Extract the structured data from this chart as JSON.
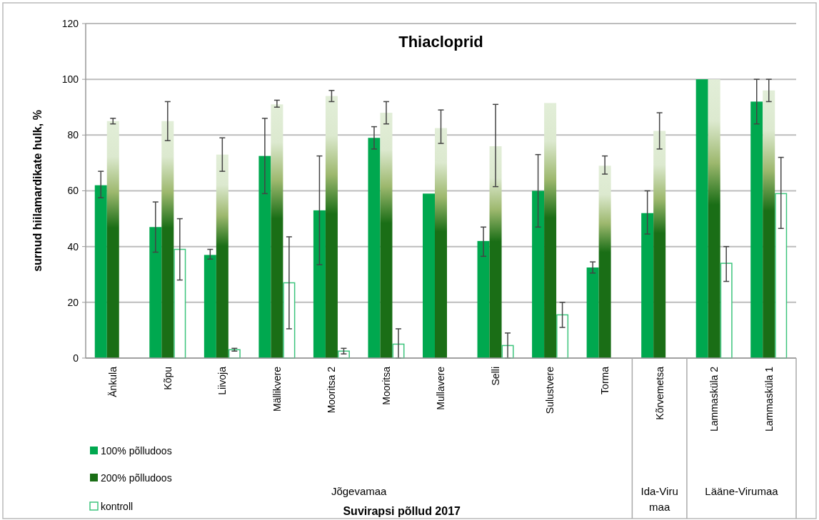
{
  "chart_data": {
    "type": "bar",
    "title": "Thiacloprid",
    "ylabel": "surnud hiilamardikate hulk, %",
    "categories": [
      "Änkula",
      "Kõpu",
      "Liivoja",
      "Mällikvere",
      "Mooritsa 2",
      "Mooritsa",
      "Mullavere",
      "Selli",
      "Sulustvere",
      "Torma",
      "Kõrvemetsa",
      "Lammasküla 2",
      "Lammasküla 1"
    ],
    "series": [
      {
        "name": "100% põlludoos",
        "color": "#00a84f",
        "values": [
          62,
          47,
          37,
          72.5,
          53,
          79,
          59,
          42,
          60,
          32.5,
          52,
          100,
          92
        ],
        "errors": [
          [
            57.5,
            67
          ],
          [
            38,
            56
          ],
          [
            35.5,
            39
          ],
          [
            59,
            86
          ],
          [
            33.5,
            72.5
          ],
          [
            75,
            83
          ],
          null,
          [
            36.5,
            47
          ],
          [
            47,
            73
          ],
          [
            30.5,
            34.5
          ],
          [
            44.5,
            60
          ],
          null,
          [
            84,
            100
          ]
        ]
      },
      {
        "name": "200% põlludoos",
        "color": "#1a6e16",
        "values": [
          85,
          85,
          73,
          91,
          94,
          88,
          82.5,
          76,
          91.5,
          69,
          81.5,
          100,
          96
        ],
        "errors": [
          [
            84,
            86
          ],
          [
            78,
            92
          ],
          [
            67,
            79
          ],
          [
            90,
            92.5
          ],
          [
            92,
            96
          ],
          [
            84,
            92
          ],
          [
            77,
            89
          ],
          [
            61.5,
            91
          ],
          null,
          [
            66,
            72.5
          ],
          [
            75,
            88
          ],
          null,
          [
            92,
            100
          ]
        ]
      },
      {
        "name": "kontroll",
        "color": "#3cc47c",
        "values": [
          null,
          39,
          3,
          27,
          2.5,
          5,
          null,
          4.5,
          15.5,
          null,
          null,
          34,
          59
        ],
        "errors": [
          null,
          [
            28,
            50
          ],
          [
            2.5,
            3.5
          ],
          [
            10.5,
            43.5
          ],
          [
            1.5,
            3.5
          ],
          [
            0,
            10.5
          ],
          null,
          [
            0,
            9
          ],
          [
            11,
            20
          ],
          null,
          null,
          [
            27.5,
            40
          ],
          [
            46.5,
            72
          ]
        ]
      }
    ],
    "ylim": [
      0,
      120
    ],
    "yticks": [
      0,
      20,
      40,
      60,
      80,
      100,
      120
    ],
    "grid": "y",
    "legend": "bottom left",
    "annotations": [
      "Jõgevamaa",
      "Ida-Viru maa",
      "Lääne-Virumaa",
      "Suvirapsi põllud 2017"
    ]
  }
}
